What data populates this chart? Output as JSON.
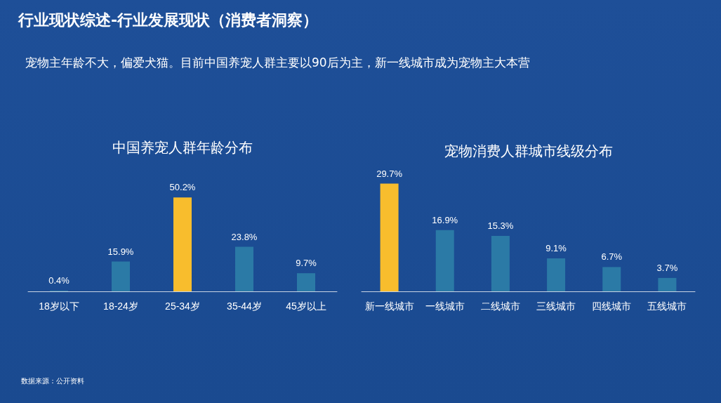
{
  "chart_data": [
    {
      "type": "other",
      "title": "行业现状综述-行业发展现状（消费者洞察）",
      "subtitle": "宠物主年龄不大，偏爱犬猫。目前中国养宠人群主要以90后为主，新一线城市成为宠物主大本营",
      "annotations": [
        "数据来源：公开资料"
      ]
    },
    {
      "type": "bar",
      "title": "中国养宠人群年龄分布",
      "categories": [
        "18岁以下",
        "18-24岁",
        "25-34岁",
        "35-44岁",
        "45岁以上"
      ],
      "values": [
        0.4,
        15.9,
        50.2,
        23.8,
        9.7
      ],
      "value_labels": [
        "0.4%",
        "15.9%",
        "50.2%",
        "23.8%",
        "9.7%"
      ],
      "colors": [
        "#2b7aa6",
        "#2b7aa6",
        "#f8bd2d",
        "#2b7aa6",
        "#2b7aa6"
      ]
    },
    {
      "type": "bar",
      "title": "宠物消费人群城市线级分布",
      "categories": [
        "新一线城市",
        "一线城市",
        "二线城市",
        "三线城市",
        "四线城市",
        "五线城市"
      ],
      "values": [
        29.7,
        16.9,
        15.3,
        9.1,
        6.7,
        3.7
      ],
      "value_labels": [
        "29.7%",
        "16.9%",
        "15.3%",
        "9.1%",
        "6.7%",
        "3.7%"
      ],
      "colors": [
        "#f8bd2d",
        "#2b7aa6",
        "#2b7aa6",
        "#2b7aa6",
        "#2b7aa6",
        "#2b7aa6"
      ]
    }
  ]
}
